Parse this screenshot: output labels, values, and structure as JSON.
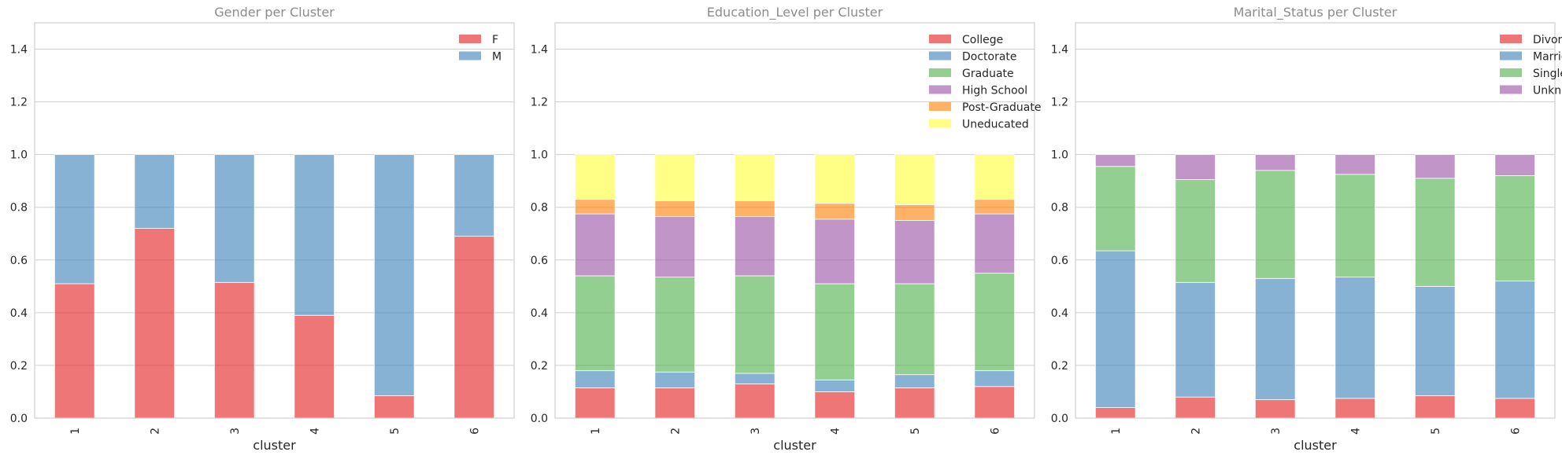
{
  "chart_data": [
    {
      "type": "bar",
      "stacked": true,
      "title": "Gender per Cluster",
      "xlabel": "cluster",
      "ylabel": "",
      "ylim": [
        0,
        1.5
      ],
      "yticks": [
        "0.0",
        "0.2",
        "0.4",
        "0.6",
        "0.8",
        "1.0",
        "1.2",
        "1.4"
      ],
      "grid": true,
      "legend": "top-right",
      "categories": [
        "1",
        "2",
        "3",
        "4",
        "5",
        "6"
      ],
      "series": [
        {
          "name": "F",
          "color": "#e41a1c",
          "values": [
            0.51,
            0.72,
            0.515,
            0.39,
            0.085,
            0.69
          ]
        },
        {
          "name": "M",
          "color": "#377eb8",
          "values": [
            0.49,
            0.28,
            0.485,
            0.61,
            0.915,
            0.31
          ]
        }
      ]
    },
    {
      "type": "bar",
      "stacked": true,
      "title": "Education_Level per Cluster",
      "xlabel": "cluster",
      "ylabel": "",
      "ylim": [
        0,
        1.5
      ],
      "yticks": [
        "0.0",
        "0.2",
        "0.4",
        "0.6",
        "0.8",
        "1.0",
        "1.2",
        "1.4"
      ],
      "grid": true,
      "legend": "top-right",
      "categories": [
        "1",
        "2",
        "3",
        "4",
        "5",
        "6"
      ],
      "series": [
        {
          "name": "College",
          "color": "#e41a1c",
          "values": [
            0.115,
            0.115,
            0.13,
            0.1,
            0.115,
            0.12
          ]
        },
        {
          "name": "Doctorate",
          "color": "#377eb8",
          "values": [
            0.065,
            0.06,
            0.04,
            0.045,
            0.05,
            0.06
          ]
        },
        {
          "name": "Graduate",
          "color": "#4daf4a",
          "values": [
            0.36,
            0.36,
            0.37,
            0.365,
            0.345,
            0.37
          ]
        },
        {
          "name": "High School",
          "color": "#984ea3",
          "values": [
            0.235,
            0.23,
            0.225,
            0.245,
            0.24,
            0.225
          ]
        },
        {
          "name": "Post-Graduate",
          "color": "#ff7f00",
          "values": [
            0.055,
            0.06,
            0.06,
            0.06,
            0.06,
            0.055
          ]
        },
        {
          "name": "Uneducated",
          "color": "#ffff33",
          "values": [
            0.17,
            0.175,
            0.175,
            0.185,
            0.19,
            0.17
          ]
        }
      ]
    },
    {
      "type": "bar",
      "stacked": true,
      "title": "Marital_Status per Cluster",
      "xlabel": "cluster",
      "ylabel": "",
      "ylim": [
        0,
        1.5
      ],
      "yticks": [
        "0.0",
        "0.2",
        "0.4",
        "0.6",
        "0.8",
        "1.0",
        "1.2",
        "1.4"
      ],
      "grid": true,
      "legend": "top-right",
      "categories": [
        "1",
        "2",
        "3",
        "4",
        "5",
        "6"
      ],
      "series": [
        {
          "name": "Divorced",
          "color": "#e41a1c",
          "values": [
            0.04,
            0.08,
            0.07,
            0.075,
            0.085,
            0.075
          ]
        },
        {
          "name": "Married",
          "color": "#377eb8",
          "values": [
            0.595,
            0.435,
            0.46,
            0.46,
            0.415,
            0.445
          ]
        },
        {
          "name": "Single",
          "color": "#4daf4a",
          "values": [
            0.32,
            0.39,
            0.41,
            0.39,
            0.41,
            0.4
          ]
        },
        {
          "name": "Unknown",
          "color": "#984ea3",
          "values": [
            0.045,
            0.095,
            0.06,
            0.075,
            0.09,
            0.08
          ]
        }
      ]
    }
  ]
}
